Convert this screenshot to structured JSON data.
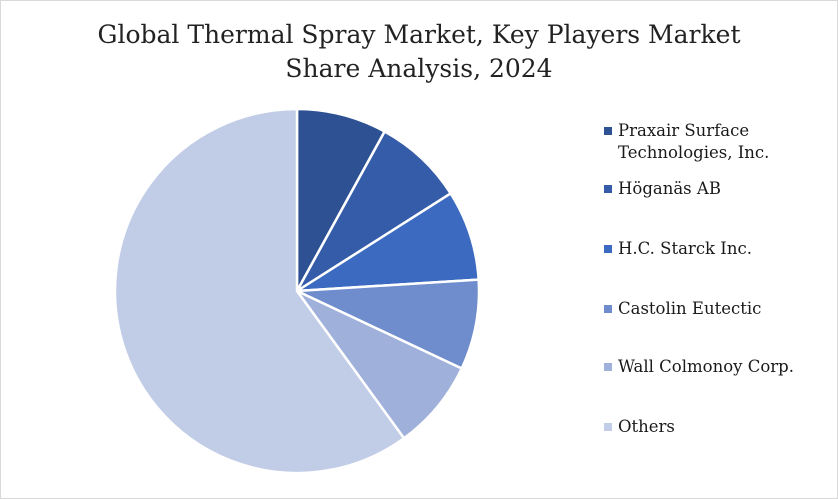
{
  "chart_data": {
    "type": "pie",
    "title_lines": [
      "Global Thermal Spray Market, Key Players Market",
      "Share Analysis, 2024"
    ],
    "slices": [
      {
        "label": "Praxair Surface Technologies, Inc.",
        "label_lines": [
          "Praxair Surface",
          "Technologies, Inc."
        ],
        "value": 8,
        "color": "#2e5193"
      },
      {
        "label": "Höganäs AB",
        "label_lines": [
          "Höganäs AB"
        ],
        "value": 8,
        "color": "#345ca8"
      },
      {
        "label": "H.C. Starck Inc.",
        "label_lines": [
          "H.C. Starck Inc."
        ],
        "value": 8,
        "color": "#3b6ac0"
      },
      {
        "label": "Castolin Eutectic",
        "label_lines": [
          "Castolin Eutectic"
        ],
        "value": 8,
        "color": "#6f8ccd"
      },
      {
        "label": "Wall Colmonoy Corp.",
        "label_lines": [
          "Wall Colmonoy Corp."
        ],
        "value": 8,
        "color": "#9fb0da"
      },
      {
        "label": "Others",
        "label_lines": [
          "Others"
        ],
        "value": 60,
        "color": "#c1cce6"
      }
    ],
    "legend_position": "right"
  }
}
